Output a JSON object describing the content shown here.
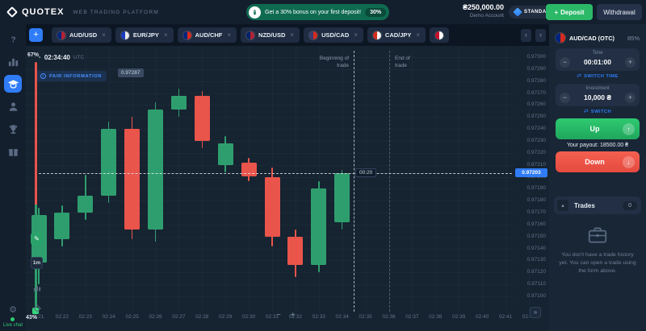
{
  "colors": {
    "accent_blue": "#2f7cf6",
    "green": "#2bb968",
    "red": "#f05a4f",
    "candle_up": "#2f9e6e",
    "candle_down": "#e9544b"
  },
  "icons": {
    "plus": "+",
    "minus": "−",
    "close": "×",
    "chevron_left": "‹",
    "chevron_right": "›",
    "collapse": "»",
    "swap": "⇄",
    "arrow_up": "↑",
    "arrow_down": "↓",
    "caret_up": "▴",
    "clock": "◔",
    "info": "i",
    "pencil": "✎",
    "gear": "⚙"
  },
  "header": {
    "logo_text": "QUOTEX",
    "logo_sub": "WEB TRADING PLATFORM",
    "banner": {
      "text": "Get a 30% bonus on your first deposit!",
      "badge": "30%"
    },
    "balance_amount": "₴250,000.00",
    "balance_label": "Demo Account",
    "account_badge": "STANDART",
    "deposit_label": "Deposit",
    "withdrawal_label": "Withdrawal"
  },
  "sidebar": {
    "items": [
      {
        "name": "help"
      },
      {
        "name": "analytics"
      },
      {
        "name": "education",
        "active": true
      },
      {
        "name": "account"
      },
      {
        "name": "tournaments"
      },
      {
        "name": "bonuses"
      }
    ],
    "live_chat_label": "Live chat"
  },
  "tabs": [
    {
      "label": "AUD/USD",
      "flag": [
        "#00247d",
        "#b22234"
      ]
    },
    {
      "label": "EUR/JPY",
      "flag": [
        "#1a3bbd",
        "#e8e8e8"
      ]
    },
    {
      "label": "AUD/CHF",
      "flag": [
        "#00247d",
        "#d52b1e"
      ]
    },
    {
      "label": "NZD/USD",
      "flag": [
        "#012169",
        "#b22234"
      ]
    },
    {
      "label": "USD/CAD",
      "flag": [
        "#3c3b6e",
        "#d52b1e"
      ]
    },
    {
      "label": "CAD/JPY",
      "flag": [
        "#d52b1e",
        "#f0f0f0"
      ]
    },
    {
      "label": "",
      "flag": [
        "#c8102e",
        "#ffffff"
      ]
    }
  ],
  "chart": {
    "clock_time": "02:34:40",
    "clock_tz": "UTC",
    "pair_info_label": "PAIR INFORMATION",
    "float_price_label": "0.97287",
    "begin_trade_label": "Beginning of trade",
    "end_trade_label": "End of trade",
    "countdown": "00:20",
    "current_price_label": "0.97203",
    "timeframe": "1m",
    "gauge_top": "67%",
    "gauge_bottom": "43%"
  },
  "chart_data": {
    "type": "candlestick",
    "pair": "AUD/CAD (OTC)",
    "ylim": [
      0.971,
      0.973
    ],
    "y_tick_labels": [
      "0.97300",
      "0.97290",
      "0.97280",
      "0.97270",
      "0.97260",
      "0.97250",
      "0.97240",
      "0.97230",
      "0.97220",
      "0.97210",
      "0.97200",
      "0.97190",
      "0.97180",
      "0.97170",
      "0.97160",
      "0.97150",
      "0.97140",
      "0.97130",
      "0.97120",
      "0.97110",
      "0.97100"
    ],
    "x_labels": [
      "2:21",
      "02:22",
      "02:23",
      "02:24",
      "02:25",
      "02:26",
      "02:27",
      "02:28",
      "02:29",
      "02:30",
      "02:31",
      "02:32",
      "02:33",
      "02:34",
      "02:35",
      "02:36",
      "02:37",
      "02:38",
      "02:39",
      "02:40",
      "02:41",
      "02:42"
    ],
    "current_price": 0.97203,
    "candles": [
      {
        "t": "02:21",
        "o": 0.97128,
        "h": 0.97174,
        "l": 0.9711,
        "c": 0.97168
      },
      {
        "t": "02:22",
        "o": 0.97148,
        "h": 0.97176,
        "l": 0.97142,
        "c": 0.9717
      },
      {
        "t": "02:23",
        "o": 0.9717,
        "h": 0.97202,
        "l": 0.97164,
        "c": 0.97184
      },
      {
        "t": "02:24",
        "o": 0.97184,
        "h": 0.97246,
        "l": 0.97178,
        "c": 0.9724
      },
      {
        "t": "02:25",
        "o": 0.9724,
        "h": 0.9725,
        "l": 0.97148,
        "c": 0.97156
      },
      {
        "t": "02:26",
        "o": 0.97156,
        "h": 0.97262,
        "l": 0.97146,
        "c": 0.97256
      },
      {
        "t": "02:27",
        "o": 0.97256,
        "h": 0.97274,
        "l": 0.9725,
        "c": 0.97268
      },
      {
        "t": "02:28",
        "o": 0.97268,
        "h": 0.97272,
        "l": 0.97224,
        "c": 0.9723
      },
      {
        "t": "02:29",
        "o": 0.9721,
        "h": 0.97234,
        "l": 0.97204,
        "c": 0.97228
      },
      {
        "t": "02:30",
        "o": 0.97212,
        "h": 0.97216,
        "l": 0.97196,
        "c": 0.972
      },
      {
        "t": "02:31",
        "o": 0.972,
        "h": 0.97208,
        "l": 0.97142,
        "c": 0.9715
      },
      {
        "t": "02:32",
        "o": 0.9715,
        "h": 0.97156,
        "l": 0.97116,
        "c": 0.97126
      },
      {
        "t": "02:33",
        "o": 0.97126,
        "h": 0.97196,
        "l": 0.9712,
        "c": 0.9719
      },
      {
        "t": "02:34",
        "o": 0.97162,
        "h": 0.97206,
        "l": 0.97156,
        "c": 0.97203
      }
    ]
  },
  "panel": {
    "pair_label": "AUD/CAD (OTC)",
    "payout_percent": "85%",
    "flag": [
      "#00247d",
      "#d52b1e"
    ],
    "time_label": "Time",
    "time_value": "00:01:00",
    "switch_time_label": "SWITCH TIME",
    "investment_label": "Investment",
    "investment_value": "10,000 ₴",
    "switch_label": "SWITCH",
    "up_label": "Up",
    "payout_label": "Your payout:",
    "payout_value": "18500.00 ₴",
    "down_label": "Down",
    "trades_label": "Trades",
    "trades_count": "0",
    "empty_history_text": "You don't have a trade history yet. You can open a trade using the form above."
  }
}
